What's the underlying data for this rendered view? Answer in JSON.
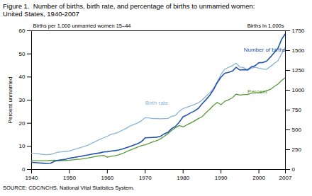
{
  "chart_data": {
    "type": "line",
    "title": "Figure 1.  Number of births, birth rate, and percentage of births to unmarried women:",
    "subtitle": "United States, 1940-2007",
    "caption": "SOURCE: CDC/NCHS, National Vital Statistics System.",
    "ylabel": "Percent unmarried",
    "y2label": "Births in 1,000s",
    "xlim": [
      1940,
      2007
    ],
    "xticks": [
      1940,
      1950,
      1960,
      1970,
      1980,
      1990,
      2000,
      2007
    ],
    "ylim": [
      0,
      60
    ],
    "yticks": [
      0,
      10,
      20,
      30,
      40,
      50,
      60
    ],
    "y2lim": [
      0,
      1750
    ],
    "y2ticks": [
      0,
      250,
      500,
      750,
      1000,
      1250,
      1500,
      1750
    ],
    "x": [
      1940,
      1941,
      1942,
      1943,
      1944,
      1945,
      1946,
      1947,
      1948,
      1949,
      1950,
      1951,
      1952,
      1953,
      1954,
      1955,
      1956,
      1957,
      1958,
      1959,
      1960,
      1961,
      1962,
      1963,
      1964,
      1965,
      1966,
      1967,
      1968,
      1969,
      1970,
      1971,
      1972,
      1973,
      1974,
      1975,
      1976,
      1977,
      1978,
      1979,
      1980,
      1981,
      1982,
      1983,
      1984,
      1985,
      1986,
      1987,
      1988,
      1989,
      1990,
      1991,
      1992,
      1993,
      1994,
      1995,
      1996,
      1997,
      1998,
      1999,
      2000,
      2001,
      2002,
      2003,
      2004,
      2005,
      2006,
      2007
    ],
    "series": [
      {
        "name": "Birth rate",
        "color": "#8ab4d8",
        "axis": "y",
        "values": [
          7.1,
          7.0,
          6.8,
          6.5,
          6.4,
          6.5,
          7.0,
          7.5,
          7.6,
          7.8,
          8.0,
          8.5,
          9.0,
          9.5,
          10.0,
          10.6,
          11.4,
          12.2,
          13.0,
          13.7,
          14.4,
          15.2,
          15.6,
          16.2,
          17.0,
          17.8,
          18.8,
          19.5,
          20.1,
          21.1,
          22.4,
          22.3,
          22.0,
          22.0,
          21.9,
          22.0,
          22.1,
          23.0,
          23.4,
          25.2,
          26.4,
          26.9,
          27.5,
          28.1,
          28.8,
          30.0,
          31.6,
          33.1,
          35.0,
          37.9,
          41.1,
          43.4,
          44.2,
          44.9,
          46.0,
          44.3,
          44.1,
          42.8,
          43.8,
          44.2,
          43.8,
          43.5,
          43.3,
          44.5,
          45.8,
          47.0,
          50.1,
          52.9
        ]
      },
      {
        "name": "Percent",
        "color": "#5a9a3a",
        "axis": "y",
        "values": [
          3.8,
          3.8,
          3.8,
          3.8,
          3.8,
          3.9,
          4.0,
          3.8,
          3.8,
          3.9,
          4.0,
          4.2,
          4.4,
          4.5,
          4.8,
          5.0,
          5.3,
          5.6,
          5.9,
          6.1,
          5.3,
          5.7,
          5.9,
          6.3,
          6.9,
          7.7,
          8.4,
          9.0,
          9.7,
          10.3,
          10.7,
          11.3,
          12.0,
          12.4,
          13.2,
          14.3,
          15.5,
          16.9,
          18.1,
          19.0,
          18.4,
          19.3,
          20.1,
          21.0,
          22.0,
          22.8,
          24.5,
          26.0,
          27.7,
          29.0,
          28.0,
          29.5,
          30.1,
          31.0,
          32.6,
          32.2,
          32.4,
          32.4,
          33.0,
          33.2,
          33.2,
          33.5,
          34.0,
          34.6,
          35.8,
          36.9,
          38.5,
          39.7
        ]
      },
      {
        "name": "Number of births",
        "color": "#2255aa",
        "axis": "y2",
        "values": [
          89.5,
          87.0,
          83.0,
          79.0,
          76.0,
          78.0,
          103.0,
          115.0,
          122.0,
          130.0,
          141.6,
          150.0,
          158.0,
          165.0,
          176.0,
          183.3,
          193.5,
          201.7,
          208.7,
          220.6,
          224.3,
          232.0,
          238.0,
          246.0,
          259.0,
          275.0,
          290.0,
          308.0,
          326.0,
          351.0,
          399.0,
          401.4,
          404.5,
          407.3,
          418.1,
          447.9,
          468.1,
          517.0,
          543.9,
          597.8,
          665.7,
          686.6,
          715.2,
          737.9,
          770.4,
          828.2,
          878.5,
          933.0,
          1005.3,
          1094.2,
          1165.4,
          1213.8,
          1224.9,
          1240.2,
          1289.6,
          1254.0,
          1260.3,
          1257.4,
          1293.6,
          1308.6,
          1347.0,
          1349.3,
          1365.9,
          1415.9,
          1470.2,
          1527.0,
          1641.7,
          1714.6
        ]
      }
    ],
    "annotations": [
      {
        "text": "Births per 1,000 unmarried women 15–44"
      },
      {
        "text": "Birth rate",
        "x": 1970,
        "y": 28
      },
      {
        "text": "Number of births",
        "x": 1996,
        "y": 51
      },
      {
        "text": "Percent",
        "x": 1997,
        "y": 33
      }
    ]
  }
}
